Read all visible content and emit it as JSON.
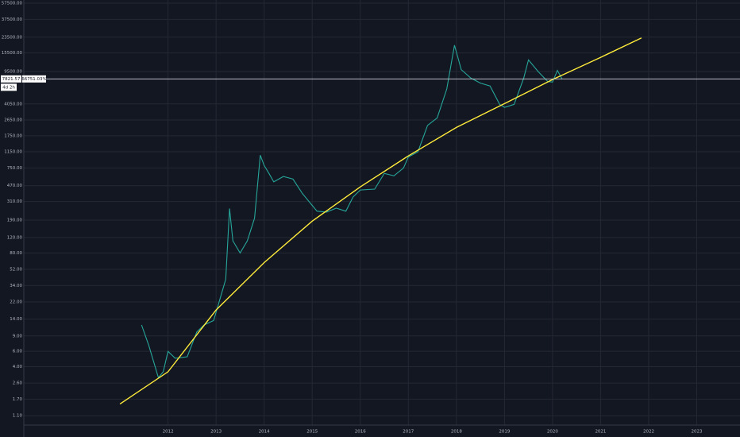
{
  "chart_data": {
    "type": "line",
    "log_scale": true,
    "grid": true,
    "xlim": [
      2009.0,
      2023.9
    ],
    "ylim": [
      0.86,
      62500
    ],
    "xticks": [
      2012,
      2013,
      2014,
      2015,
      2016,
      2017,
      2018,
      2019,
      2020,
      2021,
      2022,
      2023
    ],
    "yticks": [
      {
        "value": 57500,
        "label": "57500.00"
      },
      {
        "value": 37500,
        "label": "37500.00"
      },
      {
        "value": 23500,
        "label": "23500.00"
      },
      {
        "value": 15500,
        "label": "15500.00"
      },
      {
        "value": 9500,
        "label": "9500.00"
      },
      {
        "value": 4050,
        "label": "4050.00"
      },
      {
        "value": 2650,
        "label": "2650.00"
      },
      {
        "value": 1750,
        "label": "1750.00"
      },
      {
        "value": 1150,
        "label": "1150.00"
      },
      {
        "value": 750,
        "label": "750.00"
      },
      {
        "value": 470,
        "label": "470.00"
      },
      {
        "value": 310,
        "label": "310.00"
      },
      {
        "value": 190,
        "label": "190.00"
      },
      {
        "value": 120,
        "label": "120.00"
      },
      {
        "value": 80,
        "label": "80.00"
      },
      {
        "value": 52,
        "label": "52.00"
      },
      {
        "value": 34,
        "label": "34.00"
      },
      {
        "value": 22,
        "label": "22.00"
      },
      {
        "value": 14,
        "label": "14.00"
      },
      {
        "value": 9,
        "label": "9.00"
      },
      {
        "value": 6,
        "label": "6.00"
      },
      {
        "value": 4,
        "label": "4.00"
      },
      {
        "value": 2.6,
        "label": "2.60"
      },
      {
        "value": 1.7,
        "label": "1.70"
      },
      {
        "value": 1.1,
        "label": "1.10"
      }
    ],
    "series": [
      {
        "color": "#26a69a",
        "x": [
          2011.45,
          2011.6,
          2011.8,
          2011.9,
          2012.0,
          2012.15,
          2012.4,
          2012.6,
          2012.75,
          2012.95,
          2013.2,
          2013.28,
          2013.35,
          2013.5,
          2013.65,
          2013.8,
          2013.92,
          2014.0,
          2014.1,
          2014.2,
          2014.4,
          2014.6,
          2014.8,
          2015.0,
          2015.1,
          2015.3,
          2015.5,
          2015.7,
          2015.85,
          2016.0,
          2016.3,
          2016.5,
          2016.7,
          2016.9,
          2017.0,
          2017.2,
          2017.4,
          2017.6,
          2017.8,
          2017.96,
          2018.1,
          2018.3,
          2018.5,
          2018.7,
          2018.9,
          2019.0,
          2019.2,
          2019.4,
          2019.5,
          2019.7,
          2019.9,
          2020.0,
          2020.1,
          2020.2
        ],
        "values": [
          12,
          7,
          3,
          3.5,
          6,
          5,
          5.2,
          10,
          12,
          13.5,
          40,
          258,
          110,
          80,
          110,
          200,
          1050,
          800,
          650,
          520,
          600,
          560,
          380,
          280,
          240,
          235,
          260,
          240,
          350,
          420,
          430,
          650,
          610,
          750,
          1000,
          1150,
          2300,
          2800,
          6000,
          19000,
          10000,
          8000,
          7000,
          6500,
          4000,
          3700,
          4000,
          8000,
          12900,
          9500,
          7300,
          7200,
          9800,
          7800
        ]
      },
      {
        "color": "#ffeb3b",
        "x": [
          2011.0,
          2012.0,
          2013.0,
          2014.0,
          2015.0,
          2016.0,
          2017.0,
          2018.0,
          2019.0,
          2020.0,
          2021.0,
          2021.85
        ],
        "values": [
          1.5,
          3.5,
          17.8,
          62,
          185,
          456,
          1030,
          2180,
          4080,
          7700,
          13800,
          23000
        ]
      }
    ],
    "price_line": 7821.57,
    "price_label": "7821.57",
    "change_label": "66751.03%",
    "countdown_label": "4d 2h"
  }
}
